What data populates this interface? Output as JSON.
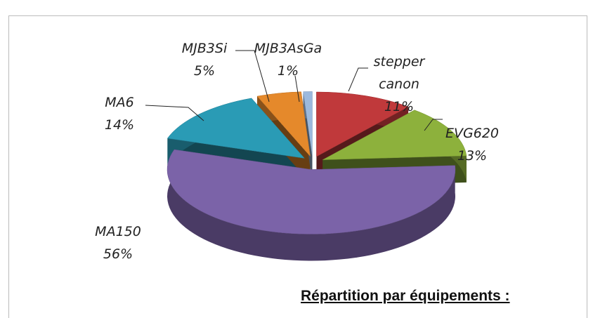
{
  "chart_data": {
    "type": "pie3d",
    "title": "Répartition par équipements :",
    "categories": [
      "stepper canon",
      "EVG620",
      "MA150",
      "MA6",
      "MJB3Si",
      "MJB3AsGa"
    ],
    "values": [
      11,
      13,
      56,
      14,
      5,
      1
    ],
    "value_labels": [
      "11%",
      "13%",
      "56%",
      "14%",
      "5%",
      "1%"
    ],
    "colors": [
      "#c0393b",
      "#8db13c",
      "#7b63a8",
      "#2a9bb5",
      "#e5892b",
      "#9cb9dd"
    ]
  }
}
